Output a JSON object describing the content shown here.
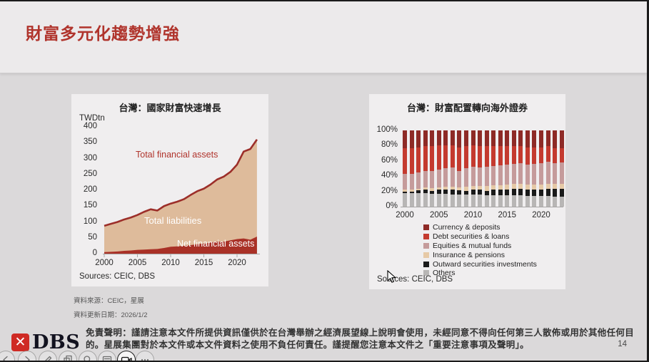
{
  "page": {
    "title": "財富多元化趨勢增強",
    "page_number": "14",
    "footnote_source": "資料來源：CEIC，星展",
    "footnote_updated": "資料更新日期：2026/1/2",
    "disclaimer_line1": "免責聲明：謹請注意本文件所提供資訊僅供於在台灣舉辦之經濟展望線上說明會使用，未經同意不得向任何第三人散佈或用於其他任何目",
    "disclaimer_line2": "的。星展集團對於本文件或本文件資料之使用不負任何責任。謹提醒您注意本文件之「重要注意事項及聲明」。",
    "logo_text": "DBS",
    "accent_color": "#b0342c"
  },
  "toolbar": {
    "icons": [
      "previous",
      "next",
      "pencil",
      "copy",
      "search",
      "notes",
      "camera",
      "more"
    ],
    "active": "camera"
  },
  "chart_data": [
    {
      "type": "area",
      "title": "台灣：國家財富快速增長",
      "ylabel": "TWDtn",
      "source": "Sources: CEIC, DBS",
      "ylim": [
        0,
        400
      ],
      "yticks": [
        0,
        50,
        100,
        150,
        200,
        250,
        300,
        350,
        400
      ],
      "xticks": [
        2000,
        2005,
        2010,
        2015,
        2020
      ],
      "x": [
        2000,
        2001,
        2002,
        2003,
        2004,
        2005,
        2006,
        2007,
        2008,
        2009,
        2010,
        2011,
        2012,
        2013,
        2014,
        2015,
        2016,
        2017,
        2018,
        2019,
        2020,
        2021,
        2022,
        2023
      ],
      "series": [
        {
          "name": "Total financial assets",
          "color": "#9c2e29",
          "fill": "#debb9b",
          "values": [
            88,
            94,
            100,
            108,
            114,
            122,
            132,
            140,
            136,
            150,
            158,
            164,
            172,
            185,
            197,
            205,
            218,
            234,
            243,
            258,
            281,
            322,
            330,
            360
          ]
        },
        {
          "name": "Net financial assets",
          "color": "#a93127",
          "fill": "#a93127",
          "values": [
            5,
            6,
            7,
            9,
            10,
            12,
            13,
            14,
            15,
            18,
            22,
            23,
            25,
            27,
            30,
            32,
            35,
            38,
            38,
            42,
            46,
            48,
            44,
            54
          ]
        }
      ],
      "annotations": [
        {
          "text": "Total financial assets",
          "color": "#b0342c"
        },
        {
          "text": "Total liabilities",
          "color": "#ffffff"
        },
        {
          "text": "Net financial assets",
          "color": "#ffffff"
        }
      ],
      "legend_position": "none",
      "grid": false
    },
    {
      "type": "bar",
      "subtype": "stacked-100pct",
      "title": "台灣：財富配置轉向海外證券",
      "source": "Sources: CEIC, DBS",
      "yticks": [
        "0%",
        "20%",
        "40%",
        "60%",
        "80%",
        "100%"
      ],
      "ylim": [
        0,
        100
      ],
      "xticks": [
        2000,
        2005,
        2010,
        2015,
        2020
      ],
      "categories": [
        2000,
        2001,
        2002,
        2003,
        2004,
        2005,
        2006,
        2007,
        2008,
        2009,
        2010,
        2011,
        2012,
        2013,
        2014,
        2015,
        2016,
        2017,
        2018,
        2019,
        2020,
        2021,
        2022,
        2023
      ],
      "series": [
        {
          "name": "Currency & deposits",
          "color": "#8e2a26",
          "values": [
            23,
            23,
            22,
            21,
            21,
            20,
            20,
            20,
            22,
            21,
            20,
            21,
            21,
            21,
            21,
            21,
            21,
            21,
            22,
            22,
            22,
            21,
            23,
            23
          ]
        },
        {
          "name": "Debt securities & loans",
          "color": "#c43a2f",
          "values": [
            34,
            34,
            33,
            32,
            32,
            31,
            30,
            29,
            31,
            29,
            28,
            28,
            27,
            26,
            25,
            24,
            23,
            22,
            23,
            22,
            21,
            20,
            20,
            19
          ]
        },
        {
          "name": "Equities & mutual funds",
          "color": "#c59b9b",
          "values": [
            21,
            21,
            22,
            22,
            23,
            24,
            24,
            25,
            22,
            24,
            25,
            24,
            25,
            25,
            26,
            26,
            26,
            27,
            26,
            27,
            28,
            29,
            27,
            28
          ]
        },
        {
          "name": "Insurance & pensions",
          "color": "#e6c9a6",
          "values": [
            2,
            2,
            2,
            3,
            3,
            3,
            4,
            4,
            4,
            5,
            5,
            5,
            6,
            6,
            6,
            7,
            7,
            7,
            7,
            7,
            7,
            7,
            7,
            7
          ]
        },
        {
          "name": "Outward securities investments",
          "color": "#1a1a1a",
          "values": [
            2,
            2,
            3,
            4,
            4,
            5,
            5,
            6,
            5,
            5,
            6,
            6,
            6,
            7,
            7,
            7,
            8,
            8,
            8,
            8,
            8,
            9,
            10,
            10
          ]
        },
        {
          "name": "Others",
          "color": "#b8b6b5",
          "values": [
            18,
            18,
            18,
            18,
            17,
            17,
            17,
            16,
            16,
            16,
            16,
            16,
            15,
            15,
            15,
            15,
            15,
            15,
            14,
            14,
            14,
            14,
            13,
            13
          ]
        }
      ],
      "stack_order_bottom_to_top": [
        "Others",
        "Outward securities investments",
        "Insurance & pensions",
        "Equities & mutual funds",
        "Debt securities & loans",
        "Currency & deposits"
      ],
      "legend_position": "bottom",
      "grid": false
    }
  ]
}
